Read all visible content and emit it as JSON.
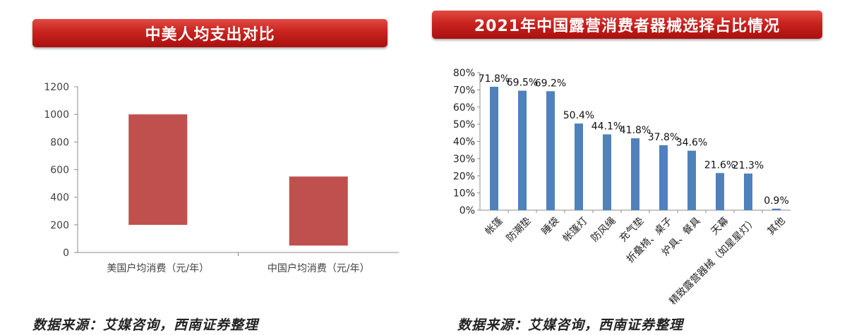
{
  "left_panel": {
    "title": "中美人均支出对比",
    "source": "数据来源：艾媒咨询，西南证券整理"
  },
  "right_panel": {
    "title": "2021年中国露营消费者器械选择占比情况",
    "source": "数据来源：艾媒咨询，西南证券整理"
  },
  "colors": {
    "banner": "#c9231f",
    "left_bar": "#c0504d",
    "right_bar": "#4f81bd"
  },
  "chart_data": [
    {
      "type": "bar",
      "subtype": "floating",
      "categories": [
        "美国户均消费（元/年）",
        "中国户均消费（元/年）"
      ],
      "ranges": [
        [
          200,
          1000
        ],
        [
          50,
          550
        ]
      ],
      "ylim": [
        0,
        1200
      ],
      "yticks": [
        "0",
        "200",
        "400",
        "600",
        "800",
        "1000",
        "1200"
      ],
      "title": "中美人均支出对比",
      "grid": false
    },
    {
      "type": "bar",
      "categories": [
        "帐篷",
        "防潮垫",
        "睡袋",
        "帐篷灯",
        "防风绳",
        "充气垫",
        "折叠椅、桌子",
        "炉具、餐具",
        "天幕",
        "精致露营器械（如星星灯）",
        "其他"
      ],
      "values": [
        71.8,
        69.5,
        69.2,
        50.4,
        44.1,
        41.8,
        37.8,
        34.6,
        21.6,
        21.3,
        0.9
      ],
      "labels": [
        "71.8%",
        "69.5%",
        "69.2%",
        "50.4%",
        "44.1%",
        "41.8%",
        "37.8%",
        "34.6%",
        "21.6%",
        "21.3%",
        "0.9%"
      ],
      "ylim": [
        0,
        80
      ],
      "yticks": [
        "0%",
        "10%",
        "20%",
        "30%",
        "40%",
        "50%",
        "60%",
        "70%",
        "80%"
      ],
      "title": "2021年中国露营消费者器械选择占比情况",
      "grid": false
    }
  ]
}
